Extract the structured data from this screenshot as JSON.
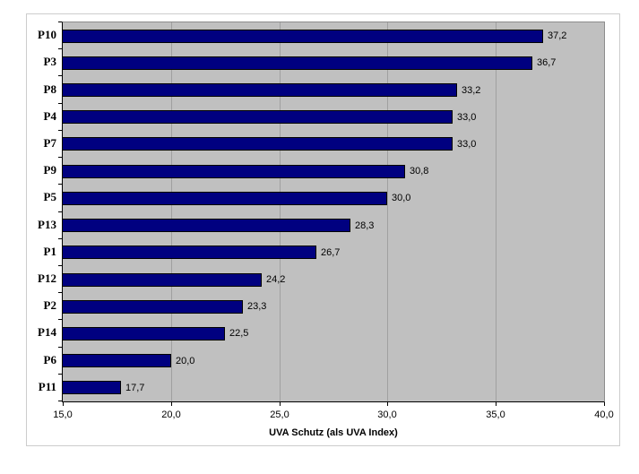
{
  "chart_data": {
    "type": "bar",
    "orientation": "horizontal",
    "title": "",
    "xlabel": "UVA Schutz (als UVA Index)",
    "ylabel": "",
    "xlim": [
      15,
      40
    ],
    "xticks": [
      15,
      20,
      25,
      30,
      35,
      40
    ],
    "xtick_labels": [
      "15,0",
      "20,0",
      "25,0",
      "30,0",
      "35,0",
      "40,0"
    ],
    "categories": [
      "P10",
      "P3",
      "P8",
      "P4",
      "P7",
      "P9",
      "P5",
      "P13",
      "P1",
      "P12",
      "P2",
      "P14",
      "P6",
      "P11"
    ],
    "values": [
      37.2,
      36.7,
      33.2,
      33.0,
      33.0,
      30.8,
      30.0,
      28.3,
      26.7,
      24.2,
      23.3,
      22.5,
      20.0,
      17.7
    ],
    "value_labels": [
      "37,2",
      "36,7",
      "33,2",
      "33,0",
      "33,0",
      "30,8",
      "30,0",
      "28,3",
      "26,7",
      "24,2",
      "23,3",
      "22,5",
      "20,0",
      "17,7"
    ],
    "grid": true,
    "legend": false,
    "colors": {
      "bar": "#000080",
      "bar_border": "#000000",
      "plot_background": "#c0c0c0",
      "gridline": "#a0a0a0",
      "chart_background": "#ffffff",
      "chart_border": "#cdcdcd",
      "axis_line": "#000000",
      "text": "#000000"
    }
  }
}
